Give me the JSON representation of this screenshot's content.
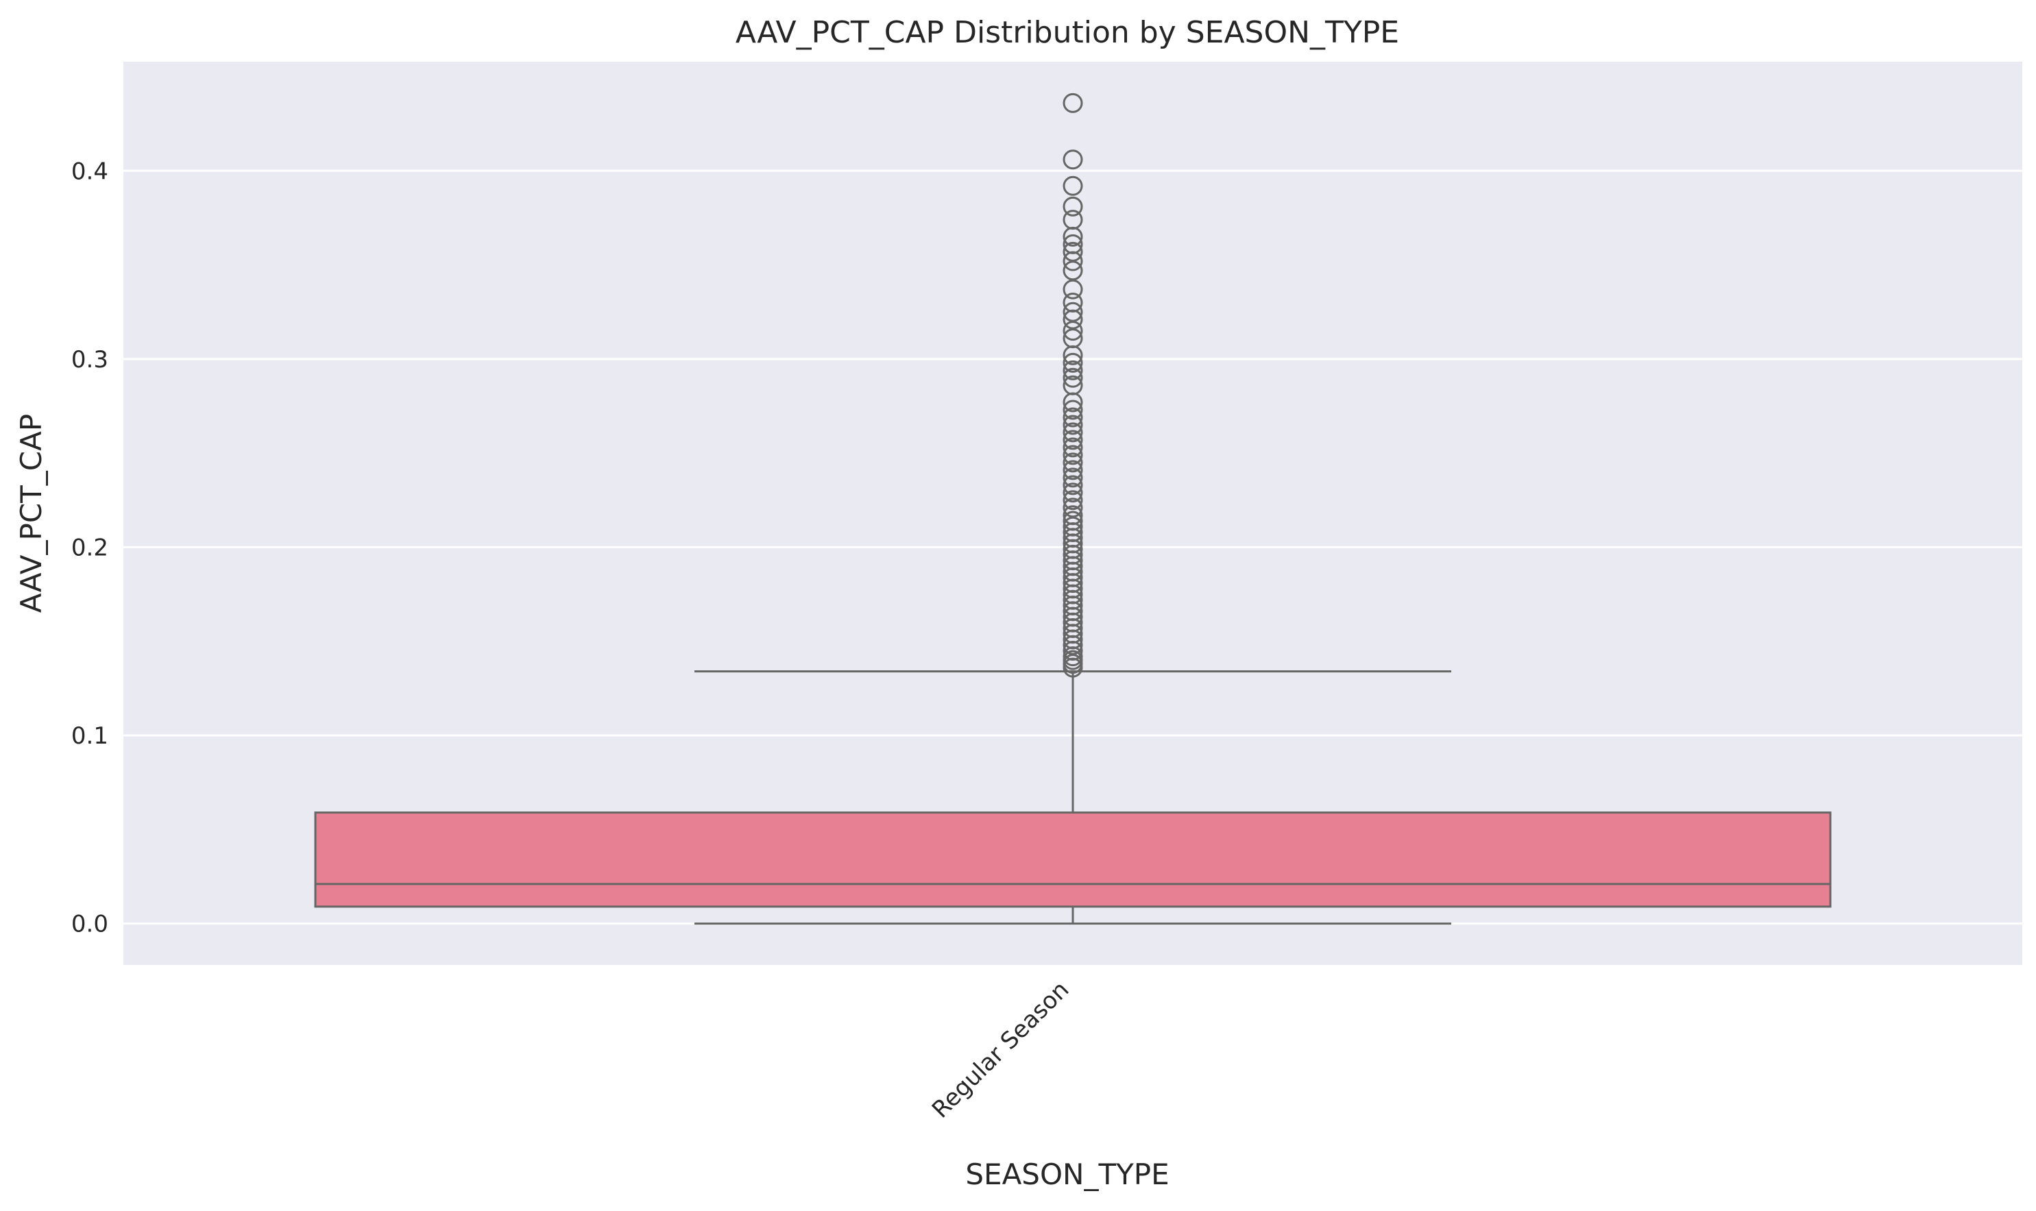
{
  "chart_data": {
    "type": "box",
    "title": "AAV_PCT_CAP Distribution by SEASON_TYPE",
    "xlabel": "SEASON_TYPE",
    "ylabel": "AAV_PCT_CAP",
    "categories": [
      "Regular Season"
    ],
    "ylim": [
      -0.022,
      0.458
    ],
    "yticks": [
      0.0,
      0.1,
      0.2,
      0.3,
      0.4
    ],
    "ytick_labels": [
      "0.0",
      "0.1",
      "0.2",
      "0.3",
      "0.4"
    ],
    "grid": true,
    "box": {
      "category": "Regular Season",
      "whisker_low": 0.0,
      "q1": 0.009,
      "median": 0.021,
      "q3": 0.059,
      "whisker_high": 0.134,
      "outliers": [
        0.136,
        0.138,
        0.14,
        0.142,
        0.145,
        0.148,
        0.151,
        0.154,
        0.157,
        0.16,
        0.163,
        0.166,
        0.169,
        0.172,
        0.175,
        0.178,
        0.181,
        0.184,
        0.187,
        0.19,
        0.193,
        0.196,
        0.199,
        0.202,
        0.205,
        0.208,
        0.211,
        0.214,
        0.217,
        0.221,
        0.225,
        0.229,
        0.233,
        0.237,
        0.241,
        0.245,
        0.249,
        0.253,
        0.257,
        0.261,
        0.265,
        0.269,
        0.273,
        0.277,
        0.286,
        0.29,
        0.294,
        0.298,
        0.302,
        0.311,
        0.315,
        0.321,
        0.325,
        0.33,
        0.337,
        0.347,
        0.352,
        0.357,
        0.361,
        0.365,
        0.374,
        0.381,
        0.392,
        0.406,
        0.436
      ]
    },
    "colors": {
      "box_fill": "#E88093",
      "line": "#666666",
      "plot_background": "#EAEAF2",
      "grid": "#FFFFFF"
    }
  }
}
